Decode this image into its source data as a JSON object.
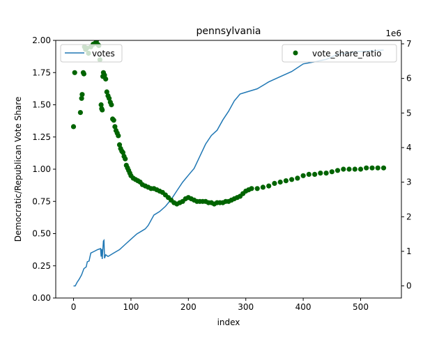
{
  "chart_data": {
    "type": "line",
    "title": "pennsylvania",
    "xlabel": "index",
    "ylabel_left": "Democratic/Republican Vote Share",
    "ylabel_right": "",
    "right_offset_text": "1e6",
    "xlim": [
      -31,
      571
    ],
    "ylim_left": [
      0,
      2
    ],
    "ylim_right": [
      -0.35,
      7.1
    ],
    "x_ticks": [
      0,
      100,
      200,
      300,
      400,
      500
    ],
    "y_left_ticks": [
      "0.00",
      "0.25",
      "0.50",
      "0.75",
      "1.00",
      "1.25",
      "1.50",
      "1.75",
      "2.00"
    ],
    "y_right_ticks": [
      0,
      1,
      2,
      3,
      4,
      5,
      6,
      7
    ],
    "grid": false,
    "legends": [
      {
        "position": "top-left",
        "entries": [
          {
            "label": "votes",
            "marker": "line",
            "color": "#1f77b4"
          }
        ]
      },
      {
        "position": "top-right",
        "entries": [
          {
            "label": "vote_share_ratio",
            "marker": "dot",
            "color": "#006400"
          }
        ]
      }
    ],
    "series": [
      {
        "name": "votes",
        "axis": "right",
        "kind": "line",
        "color": "#1f77b4",
        "points": [
          [
            0,
            0.0
          ],
          [
            3,
            0.0
          ],
          [
            6,
            0.1
          ],
          [
            10,
            0.2
          ],
          [
            14,
            0.32
          ],
          [
            18,
            0.5
          ],
          [
            22,
            0.55
          ],
          [
            24,
            0.7
          ],
          [
            27,
            0.72
          ],
          [
            30,
            0.95
          ],
          [
            36,
            1.0
          ],
          [
            42,
            1.05
          ],
          [
            47,
            1.08
          ],
          [
            48,
            0.85
          ],
          [
            49,
            1.07
          ],
          [
            50,
            0.78
          ],
          [
            52,
            1.3
          ],
          [
            53,
            1.32
          ],
          [
            54,
            0.8
          ],
          [
            56,
            0.9
          ],
          [
            60,
            0.85
          ],
          [
            70,
            0.95
          ],
          [
            80,
            1.05
          ],
          [
            90,
            1.2
          ],
          [
            100,
            1.35
          ],
          [
            110,
            1.5
          ],
          [
            120,
            1.6
          ],
          [
            125,
            1.65
          ],
          [
            130,
            1.75
          ],
          [
            140,
            2.05
          ],
          [
            150,
            2.15
          ],
          [
            160,
            2.3
          ],
          [
            170,
            2.5
          ],
          [
            180,
            2.75
          ],
          [
            190,
            3.0
          ],
          [
            200,
            3.2
          ],
          [
            210,
            3.4
          ],
          [
            220,
            3.75
          ],
          [
            230,
            4.1
          ],
          [
            240,
            4.35
          ],
          [
            250,
            4.5
          ],
          [
            260,
            4.8
          ],
          [
            270,
            5.05
          ],
          [
            280,
            5.35
          ],
          [
            290,
            5.55
          ],
          [
            300,
            5.6
          ],
          [
            320,
            5.7
          ],
          [
            340,
            5.9
          ],
          [
            360,
            6.05
          ],
          [
            380,
            6.2
          ],
          [
            400,
            6.42
          ],
          [
            420,
            6.48
          ],
          [
            440,
            6.55
          ],
          [
            460,
            6.7
          ],
          [
            480,
            6.75
          ],
          [
            500,
            6.78
          ],
          [
            520,
            6.8
          ],
          [
            540,
            6.82
          ]
        ]
      },
      {
        "name": "vote_share_ratio",
        "axis": "left",
        "kind": "scatter",
        "color": "#006400",
        "points": [
          [
            0,
            1.33
          ],
          [
            2,
            1.75
          ],
          [
            12,
            1.44
          ],
          [
            14,
            1.55
          ],
          [
            15,
            1.58
          ],
          [
            17,
            1.75
          ],
          [
            18,
            1.74
          ],
          [
            19,
            1.95
          ],
          [
            21,
            1.93
          ],
          [
            23,
            1.94
          ],
          [
            26,
            1.9
          ],
          [
            30,
            1.95
          ],
          [
            34,
            1.97
          ],
          [
            38,
            1.98
          ],
          [
            40,
            2.0
          ],
          [
            42,
            1.97
          ],
          [
            44,
            1.96
          ],
          [
            46,
            1.85
          ],
          [
            48,
            1.5
          ],
          [
            49,
            1.47
          ],
          [
            50,
            1.46
          ],
          [
            51,
            1.72
          ],
          [
            52,
            1.75
          ],
          [
            54,
            1.73
          ],
          [
            56,
            1.7
          ],
          [
            58,
            1.6
          ],
          [
            60,
            1.57
          ],
          [
            62,
            1.55
          ],
          [
            64,
            1.52
          ],
          [
            66,
            1.5
          ],
          [
            68,
            1.39
          ],
          [
            70,
            1.38
          ],
          [
            72,
            1.33
          ],
          [
            74,
            1.3
          ],
          [
            76,
            1.28
          ],
          [
            78,
            1.26
          ],
          [
            80,
            1.19
          ],
          [
            82,
            1.16
          ],
          [
            84,
            1.14
          ],
          [
            86,
            1.13
          ],
          [
            88,
            1.1
          ],
          [
            90,
            1.08
          ],
          [
            92,
            1.03
          ],
          [
            94,
            1.01
          ],
          [
            96,
            0.99
          ],
          [
            98,
            0.97
          ],
          [
            100,
            0.95
          ],
          [
            104,
            0.93
          ],
          [
            108,
            0.92
          ],
          [
            112,
            0.91
          ],
          [
            116,
            0.9
          ],
          [
            120,
            0.88
          ],
          [
            125,
            0.87
          ],
          [
            130,
            0.86
          ],
          [
            135,
            0.85
          ],
          [
            140,
            0.85
          ],
          [
            145,
            0.84
          ],
          [
            150,
            0.83
          ],
          [
            155,
            0.82
          ],
          [
            160,
            0.8
          ],
          [
            165,
            0.78
          ],
          [
            170,
            0.76
          ],
          [
            175,
            0.74
          ],
          [
            180,
            0.73
          ],
          [
            185,
            0.74
          ],
          [
            190,
            0.75
          ],
          [
            195,
            0.77
          ],
          [
            200,
            0.78
          ],
          [
            205,
            0.77
          ],
          [
            210,
            0.76
          ],
          [
            215,
            0.75
          ],
          [
            220,
            0.75
          ],
          [
            225,
            0.75
          ],
          [
            230,
            0.75
          ],
          [
            235,
            0.74
          ],
          [
            240,
            0.74
          ],
          [
            245,
            0.73
          ],
          [
            250,
            0.74
          ],
          [
            255,
            0.74
          ],
          [
            260,
            0.74
          ],
          [
            265,
            0.75
          ],
          [
            270,
            0.75
          ],
          [
            275,
            0.76
          ],
          [
            280,
            0.77
          ],
          [
            285,
            0.78
          ],
          [
            290,
            0.79
          ],
          [
            295,
            0.81
          ],
          [
            300,
            0.83
          ],
          [
            305,
            0.84
          ],
          [
            310,
            0.85
          ],
          [
            320,
            0.85
          ],
          [
            330,
            0.86
          ],
          [
            340,
            0.87
          ],
          [
            350,
            0.89
          ],
          [
            360,
            0.9
          ],
          [
            370,
            0.91
          ],
          [
            380,
            0.92
          ],
          [
            390,
            0.93
          ],
          [
            400,
            0.95
          ],
          [
            410,
            0.96
          ],
          [
            420,
            0.96
          ],
          [
            430,
            0.97
          ],
          [
            440,
            0.97
          ],
          [
            450,
            0.98
          ],
          [
            460,
            0.99
          ],
          [
            470,
            1.0
          ],
          [
            480,
            1.0
          ],
          [
            490,
            1.0
          ],
          [
            500,
            1.0
          ],
          [
            510,
            1.01
          ],
          [
            520,
            1.01
          ],
          [
            530,
            1.01
          ],
          [
            540,
            1.01
          ]
        ]
      }
    ]
  }
}
